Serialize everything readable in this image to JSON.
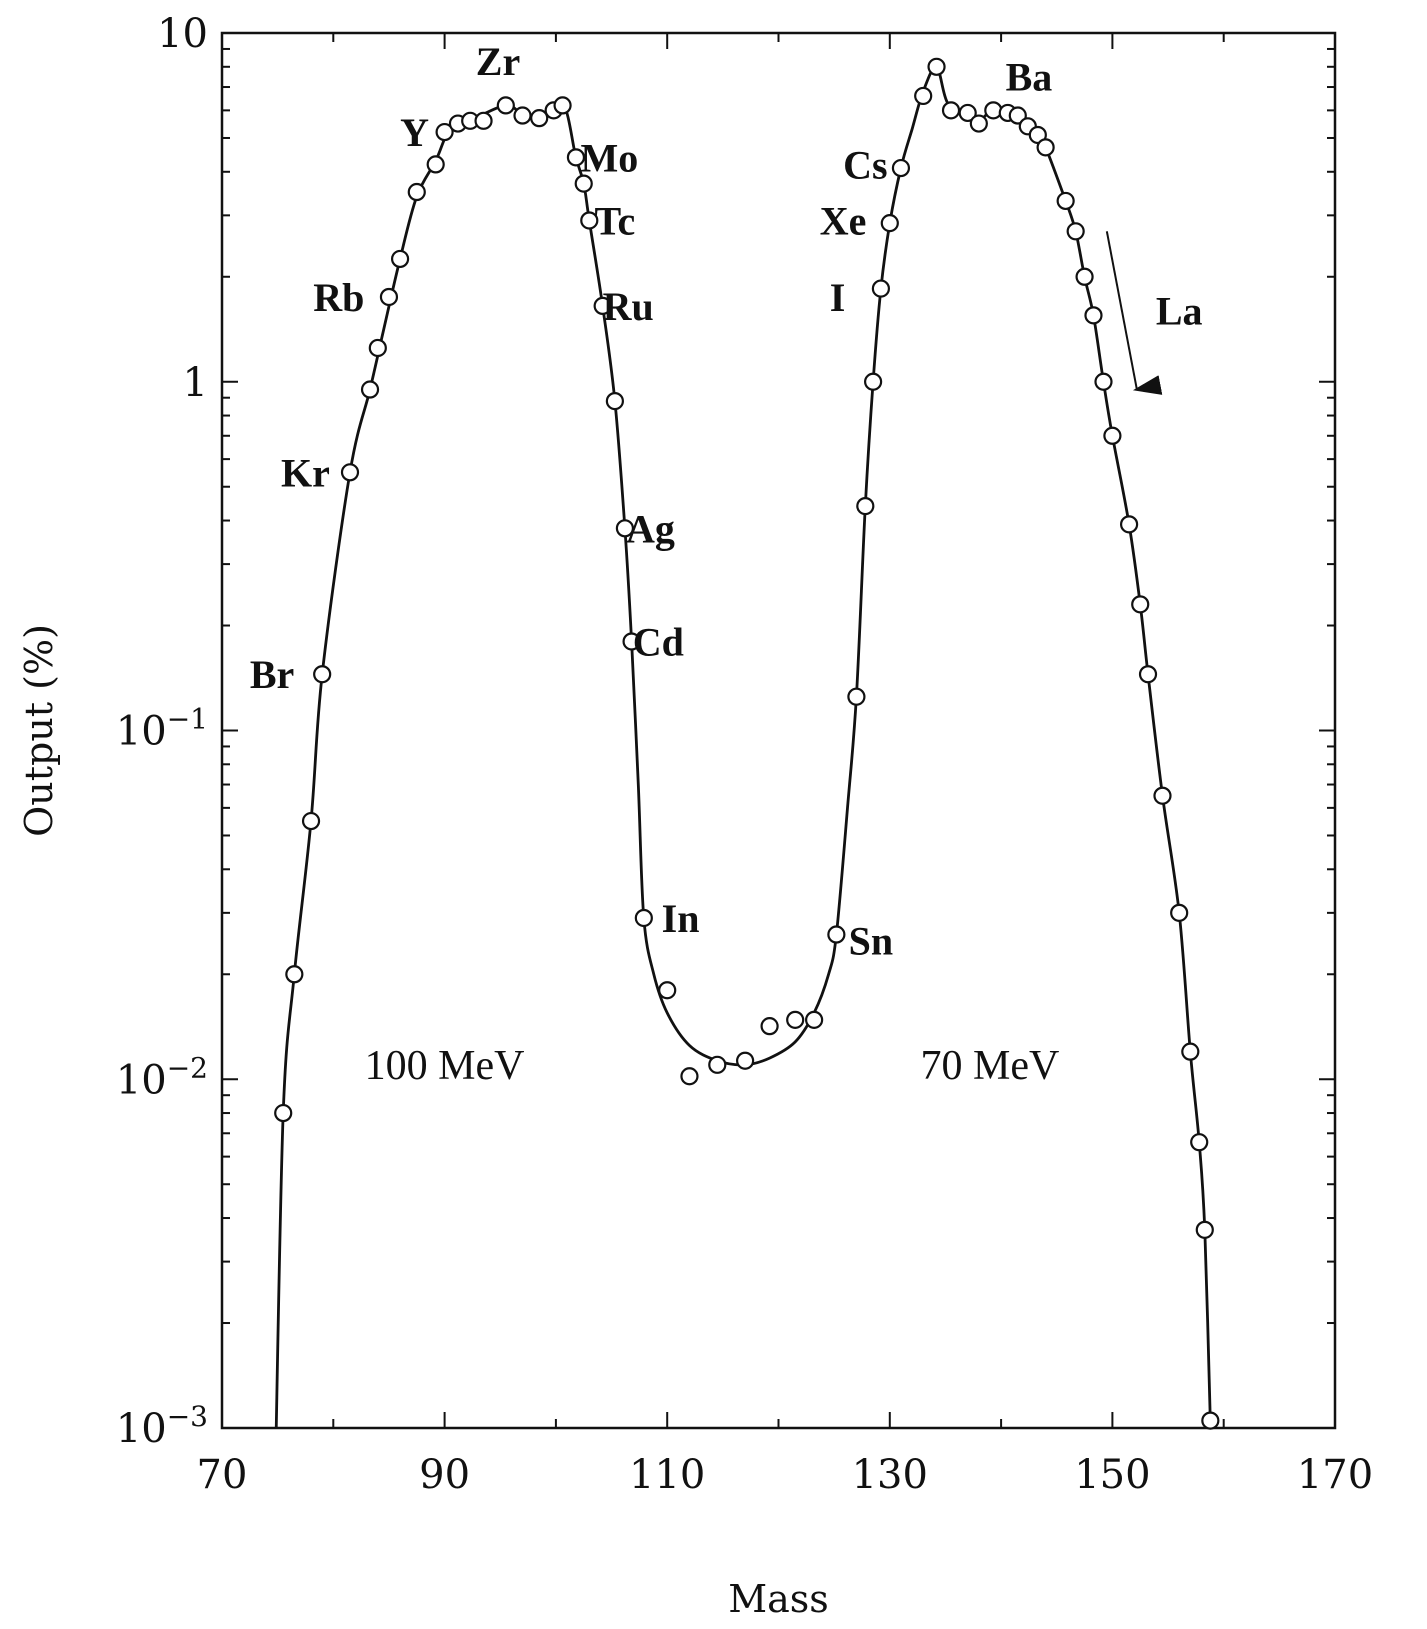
{
  "chart_data": {
    "type": "scatter",
    "title": "",
    "xlabel": "Mass",
    "ylabel": "Output (%)",
    "xlim": [
      70,
      170
    ],
    "ylim": [
      0.001,
      10
    ],
    "yscale": "log",
    "grid": false,
    "legend": "none",
    "x_ticks": [
      70,
      90,
      110,
      130,
      150,
      170
    ],
    "x_tick_labels": [
      "70",
      "90",
      "110",
      "130",
      "150",
      "170"
    ],
    "y_ticks": [
      10,
      1,
      0.1,
      0.01,
      0.001
    ],
    "y_tick_labels": [
      {
        "base": "10",
        "exp": ""
      },
      {
        "base": "1",
        "exp": ""
      },
      {
        "base": "10",
        "exp": "−1"
      },
      {
        "base": "10",
        "exp": "−2"
      },
      {
        "base": "10",
        "exp": "−3"
      }
    ],
    "series": [
      {
        "marker": "open-circle",
        "points": [
          [
            75.5,
            0.008
          ],
          [
            76.5,
            0.02
          ],
          [
            78,
            0.055
          ],
          [
            79,
            0.145
          ],
          [
            81.5,
            0.55
          ],
          [
            83.3,
            0.95
          ],
          [
            84,
            1.25
          ],
          [
            85,
            1.75
          ],
          [
            86,
            2.25
          ],
          [
            87.5,
            3.5
          ],
          [
            89.2,
            4.2
          ],
          [
            90,
            5.2
          ],
          [
            91.2,
            5.5
          ],
          [
            92.3,
            5.6
          ],
          [
            93.5,
            5.6
          ],
          [
            95.5,
            6.2
          ],
          [
            97,
            5.8
          ],
          [
            98.5,
            5.7
          ],
          [
            99.8,
            6.0
          ],
          [
            100.6,
            6.2
          ],
          [
            101.8,
            4.4
          ],
          [
            102.5,
            3.7
          ],
          [
            103,
            2.9
          ],
          [
            104.2,
            1.65
          ],
          [
            105.3,
            0.88
          ],
          [
            106.2,
            0.38
          ],
          [
            106.8,
            0.18
          ],
          [
            107.9,
            0.029
          ],
          [
            110,
            0.018
          ],
          [
            112,
            0.0102
          ],
          [
            114.5,
            0.011
          ],
          [
            117,
            0.0113
          ],
          [
            119.2,
            0.0142
          ],
          [
            121.5,
            0.0148
          ],
          [
            123.2,
            0.0148
          ],
          [
            125.2,
            0.026
          ],
          [
            127,
            0.125
          ],
          [
            127.8,
            0.44
          ],
          [
            128.5,
            1.0
          ],
          [
            129.2,
            1.85
          ],
          [
            130,
            2.85
          ],
          [
            131,
            4.1
          ],
          [
            133,
            6.6
          ],
          [
            134.2,
            8.0
          ],
          [
            135.5,
            6.0
          ],
          [
            137,
            5.9
          ],
          [
            138,
            5.5
          ],
          [
            139.3,
            6.0
          ],
          [
            140.6,
            5.9
          ],
          [
            141.5,
            5.8
          ],
          [
            142.4,
            5.4
          ],
          [
            143.3,
            5.1
          ],
          [
            144,
            4.7
          ],
          [
            145.8,
            3.3
          ],
          [
            146.7,
            2.7
          ],
          [
            147.5,
            2.0
          ],
          [
            148.3,
            1.55
          ],
          [
            149.2,
            1.0
          ],
          [
            150,
            0.7
          ],
          [
            151.5,
            0.39
          ],
          [
            152.5,
            0.23
          ],
          [
            153.2,
            0.145
          ],
          [
            154.5,
            0.065
          ],
          [
            156,
            0.03
          ],
          [
            157,
            0.012
          ],
          [
            157.8,
            0.0066
          ],
          [
            158.3,
            0.0037
          ],
          [
            158.8,
            0.00105
          ]
        ],
        "curve": [
          [
            74.8,
            0.00075
          ],
          [
            75.5,
            0.008
          ],
          [
            76.5,
            0.02
          ],
          [
            78,
            0.055
          ],
          [
            79,
            0.145
          ],
          [
            81.5,
            0.55
          ],
          [
            83.3,
            0.95
          ],
          [
            84.5,
            1.4
          ],
          [
            86,
            2.25
          ],
          [
            87.5,
            3.4
          ],
          [
            89.2,
            4.3
          ],
          [
            90.5,
            5.3
          ],
          [
            92.5,
            5.65
          ],
          [
            95.5,
            6.2
          ],
          [
            97,
            5.85
          ],
          [
            98.5,
            5.75
          ],
          [
            100.6,
            6.3
          ],
          [
            101.8,
            4.4
          ],
          [
            102.5,
            3.7
          ],
          [
            103,
            2.9
          ],
          [
            104.2,
            1.65
          ],
          [
            105.3,
            0.88
          ],
          [
            106.2,
            0.38
          ],
          [
            106.8,
            0.18
          ],
          [
            107.4,
            0.07
          ],
          [
            107.9,
            0.029
          ],
          [
            108.8,
            0.02
          ],
          [
            110,
            0.0155
          ],
          [
            112,
            0.0125
          ],
          [
            114.5,
            0.0113
          ],
          [
            117,
            0.011
          ],
          [
            119.2,
            0.0115
          ],
          [
            121.5,
            0.0128
          ],
          [
            123.2,
            0.0155
          ],
          [
            124.5,
            0.02
          ],
          [
            125.2,
            0.026
          ],
          [
            126.2,
            0.06
          ],
          [
            127,
            0.125
          ],
          [
            127.8,
            0.44
          ],
          [
            128.5,
            1.0
          ],
          [
            129.2,
            1.85
          ],
          [
            130,
            2.85
          ],
          [
            131,
            4.1
          ],
          [
            132,
            5.3
          ],
          [
            133,
            6.8
          ],
          [
            134.2,
            8.0
          ],
          [
            135.2,
            6.3
          ],
          [
            137,
            5.9
          ],
          [
            138,
            5.6
          ],
          [
            139.3,
            6.0
          ],
          [
            141.5,
            5.8
          ],
          [
            143.3,
            5.1
          ],
          [
            144,
            4.7
          ],
          [
            145.8,
            3.3
          ],
          [
            146.7,
            2.7
          ],
          [
            147.5,
            2.0
          ],
          [
            148.3,
            1.55
          ],
          [
            149.2,
            1.0
          ],
          [
            150,
            0.7
          ],
          [
            151.5,
            0.39
          ],
          [
            152.5,
            0.23
          ],
          [
            153.2,
            0.145
          ],
          [
            154.5,
            0.065
          ],
          [
            156,
            0.03
          ],
          [
            157,
            0.012
          ],
          [
            157.8,
            0.0066
          ],
          [
            158.3,
            0.0037
          ],
          [
            158.8,
            0.00105
          ],
          [
            158.9,
            0.00075
          ]
        ]
      }
    ],
    "annotations": [
      {
        "text": "Br",
        "x": 74.5,
        "y": 0.145
      },
      {
        "text": "Kr",
        "x": 77.5,
        "y": 0.55
      },
      {
        "text": "Rb",
        "x": 80.5,
        "y": 1.75
      },
      {
        "text": "Y",
        "x": 87.3,
        "y": 5.2
      },
      {
        "text": "Zr",
        "x": 94.8,
        "y": 8.3
      },
      {
        "text": "Mo",
        "x": 104.8,
        "y": 4.4
      },
      {
        "text": "Tc",
        "x": 105.3,
        "y": 2.9
      },
      {
        "text": "Ru",
        "x": 106.5,
        "y": 1.65
      },
      {
        "text": "Ag",
        "x": 108.5,
        "y": 0.38
      },
      {
        "text": "Cd",
        "x": 109.2,
        "y": 0.18
      },
      {
        "text": "In",
        "x": 111.2,
        "y": 0.029
      },
      {
        "text": "Sn",
        "x": 128.3,
        "y": 0.025
      },
      {
        "text": "I",
        "x": 125.3,
        "y": 1.75
      },
      {
        "text": "Xe",
        "x": 125.8,
        "y": 2.9
      },
      {
        "text": "Cs",
        "x": 127.8,
        "y": 4.2
      },
      {
        "text": "Ba",
        "x": 142.5,
        "y": 7.5
      },
      {
        "text": "La",
        "x": 156,
        "y": 1.6
      }
    ],
    "energy_labels": [
      {
        "text": "100 MeV",
        "x": 90,
        "y": 0.011
      },
      {
        "text": "70 MeV",
        "x": 139,
        "y": 0.011
      }
    ],
    "arrow": {
      "label": "La",
      "from": [
        149.5,
        2.7
      ],
      "to": [
        152.2,
        0.95
      ]
    }
  }
}
